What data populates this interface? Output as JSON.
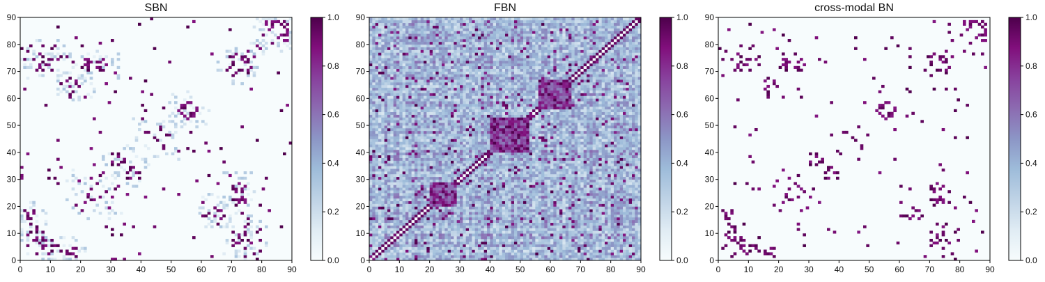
{
  "figure": {
    "panels": [
      {
        "title": "SBN"
      },
      {
        "title": "FBN"
      },
      {
        "title": "cross-modal BN"
      }
    ]
  },
  "colors": {
    "colormap": "BuPu",
    "stops": [
      "#f7fcfd",
      "#e0ecf4",
      "#bfd3e6",
      "#9ebcda",
      "#8c96c6",
      "#8c6bb1",
      "#88419d",
      "#810f7c",
      "#4d004b"
    ]
  },
  "chart_data": [
    {
      "type": "heatmap",
      "title": "SBN",
      "matrix_size": 90,
      "xlim": [
        0,
        90
      ],
      "ylim": [
        0,
        90
      ],
      "xticks": [
        0,
        10,
        20,
        30,
        40,
        50,
        60,
        70,
        80,
        90
      ],
      "yticks": [
        0,
        10,
        20,
        30,
        40,
        50,
        60,
        70,
        80,
        90
      ],
      "colorbar": {
        "range": [
          0.0,
          1.0
        ],
        "ticks": [
          "0.0",
          "0.2",
          "0.4",
          "0.6",
          "0.8",
          "1.0"
        ]
      },
      "description_of_values": "sparse symmetric connectivity; mostly ~0 with scattered strong (~1.0) and weak (~0.1-0.3) cells",
      "symmetric": true
    },
    {
      "type": "heatmap",
      "title": "FBN",
      "matrix_size": 90,
      "xlim": [
        0,
        90
      ],
      "ylim": [
        0,
        90
      ],
      "xticks": [
        0,
        10,
        20,
        30,
        40,
        50,
        60,
        70,
        80,
        90
      ],
      "yticks": [
        0,
        10,
        20,
        30,
        40,
        50,
        60,
        70,
        80,
        90
      ],
      "colorbar": {
        "range": [
          0.0,
          1.0
        ],
        "ticks": [
          "0.0",
          "0.2",
          "0.4",
          "0.6",
          "0.8",
          "1.0"
        ]
      },
      "symmetric": true
    },
    {
      "type": "heatmap",
      "title": "cross-modal BN",
      "matrix_size": 90,
      "xlim": [
        0,
        90
      ],
      "ylim": [
        0,
        90
      ],
      "xticks": [
        0,
        10,
        20,
        30,
        40,
        50,
        60,
        70,
        80,
        90
      ],
      "yticks": [
        0,
        10,
        20,
        30,
        40,
        50,
        60,
        70,
        80,
        90
      ],
      "colorbar": {
        "range": [
          0.0,
          1.0
        ],
        "ticks": [
          "0.0",
          "0.2",
          "0.4",
          "0.6",
          "0.8",
          "1.0"
        ]
      },
      "symmetric": true
    }
  ]
}
